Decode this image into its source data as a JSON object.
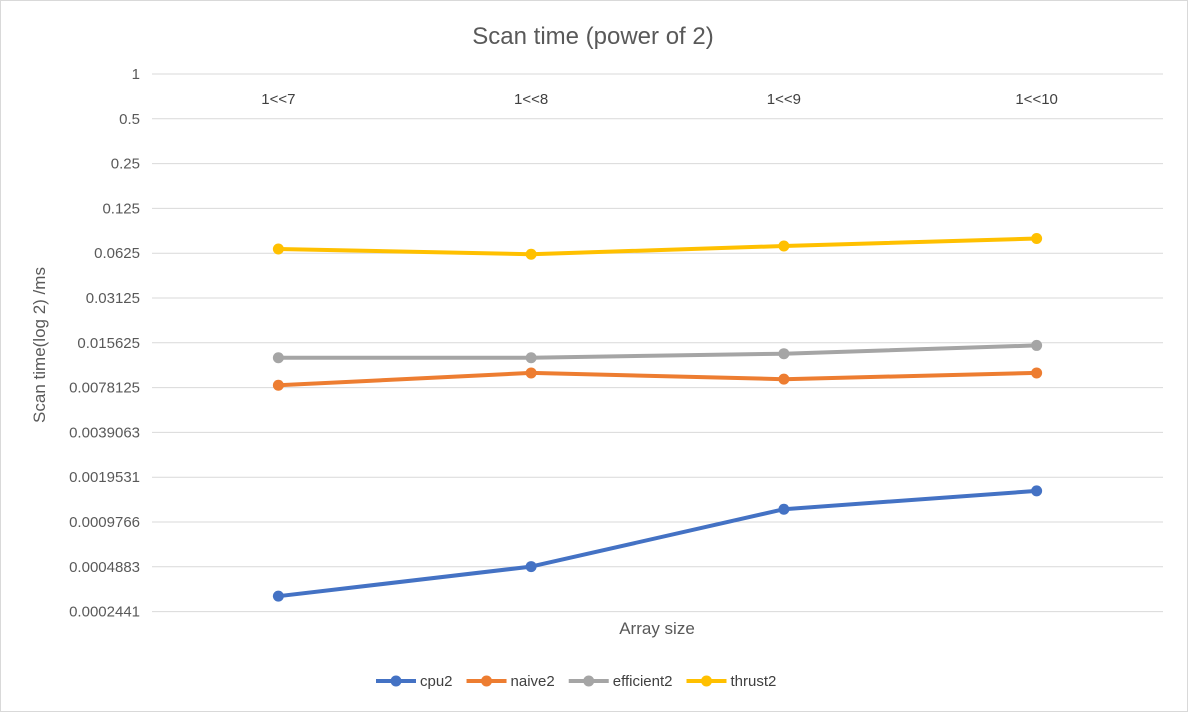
{
  "chart_data": {
    "type": "line",
    "title": "Scan time (power of 2)",
    "xlabel": "Array size",
    "ylabel": "Scan time(log 2) /ms",
    "y_scale": "log2",
    "ylim": [
      0.0002441,
      1
    ],
    "y_ticks": [
      "1",
      "0.5",
      "0.25",
      "0.125",
      "0.0625",
      "0.03125",
      "0.015625",
      "0.0078125",
      "0.0039063",
      "0.0019531",
      "0.0009766",
      "0.0004883",
      "0.0002441"
    ],
    "categories": [
      "1<<7",
      "1<<8",
      "1<<9",
      "1<<10"
    ],
    "x_axis_position": "top",
    "grid": true,
    "legend_position": "bottom",
    "series": [
      {
        "name": "cpu2",
        "color": "#4472C4",
        "values": [
          0.00031,
          0.00049,
          0.00119,
          0.00158
        ]
      },
      {
        "name": "naive2",
        "color": "#ED7D31",
        "values": [
          0.0081,
          0.0098,
          0.0089,
          0.0098
        ]
      },
      {
        "name": "efficient2",
        "color": "#A5A5A5",
        "values": [
          0.0124,
          0.0124,
          0.0132,
          0.015
        ]
      },
      {
        "name": "thrust2",
        "color": "#FFC000",
        "values": [
          0.0667,
          0.0615,
          0.0699,
          0.0785
        ]
      }
    ]
  }
}
